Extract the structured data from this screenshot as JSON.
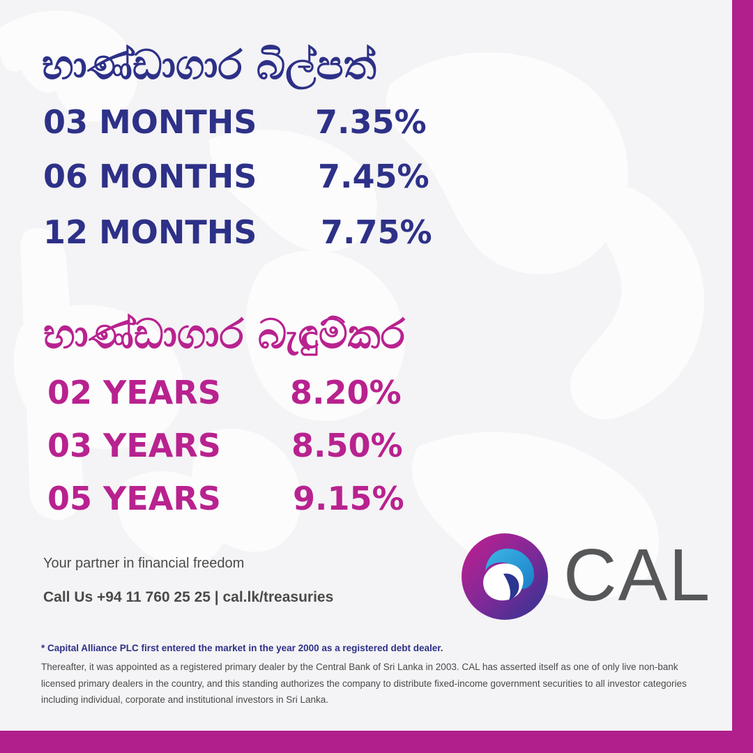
{
  "colors": {
    "navy": "#2d3187",
    "magenta": "#b8228f",
    "border": "#b01f8c",
    "grey_text": "#4a4a4a",
    "logo_text": "#555759",
    "background": "#f4f3f5"
  },
  "treasury_bills": {
    "heading": "භාණ්ඩාගාර බිල්පත්",
    "rows": [
      {
        "tenor": "03 MONTHS",
        "rate": "7.35%"
      },
      {
        "tenor": "06 MONTHS",
        "rate": "7.45%"
      },
      {
        "tenor": "12 MONTHS",
        "rate": "7.75%"
      }
    ]
  },
  "treasury_bonds": {
    "heading": "භාණ්ඩාගාර බැඳුම්කර",
    "rows": [
      {
        "tenor": "02 YEARS",
        "rate": "8.20%"
      },
      {
        "tenor": "03 YEARS",
        "rate": "8.50%"
      },
      {
        "tenor": "05 YEARS",
        "rate": "9.15%"
      }
    ]
  },
  "tagline": "Your partner in financial freedom",
  "contact": "Call Us +94 11 760 25 25 | cal.lk/treasuries",
  "logo": {
    "text": "CAL",
    "icon": "cal-logo-icon"
  },
  "footnote": {
    "lead": "* Capital Alliance PLC first entered the market in the year 2000 as a registered debt dealer.",
    "body": "Thereafter, it was appointed as a registered primary dealer by the Central Bank of Sri Lanka in 2003. CAL has asserted itself as one of only live non-bank licensed primary dealers in the country, and this standing authorizes the company to distribute fixed-income government securities to all investor categories including individual, corporate and institutional investors in Sri Lanka."
  }
}
